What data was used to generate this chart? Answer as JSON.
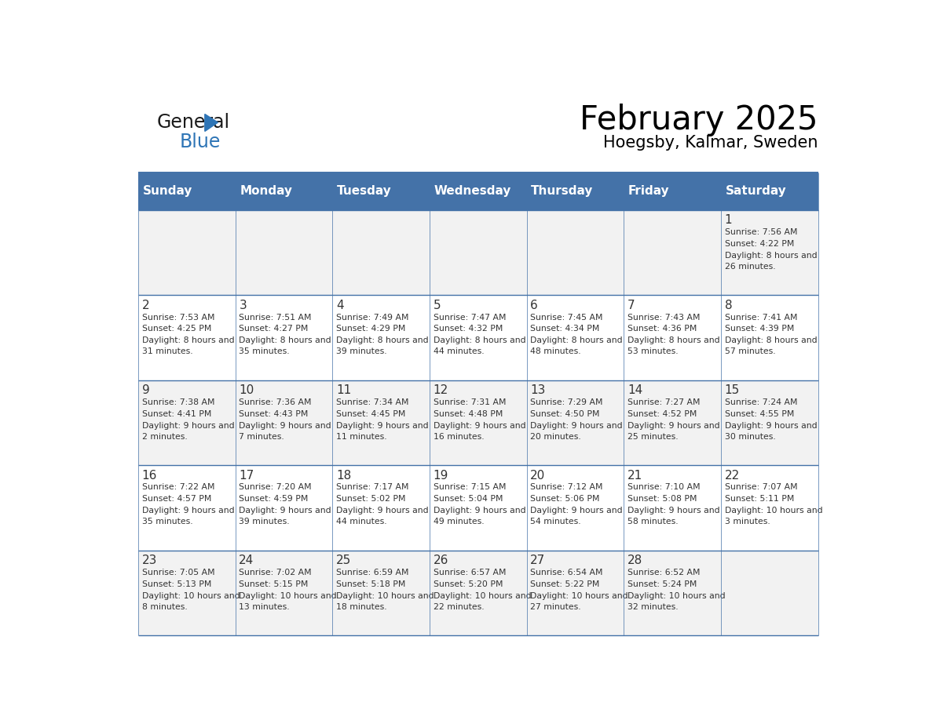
{
  "title": "February 2025",
  "subtitle": "Hoegsby, Kalmar, Sweden",
  "days_of_week": [
    "Sunday",
    "Monday",
    "Tuesday",
    "Wednesday",
    "Thursday",
    "Friday",
    "Saturday"
  ],
  "header_bg": "#4472A8",
  "header_text": "#FFFFFF",
  "row_bg_odd": "#F2F2F2",
  "row_bg_even": "#FFFFFF",
  "border_color": "#4472A8",
  "text_color": "#333333",
  "day_num_color": "#333333",
  "logo_general_color": "#1a1a1a",
  "logo_blue_color": "#2E75B6",
  "calendar_data": {
    "1": {
      "sunrise": "7:56 AM",
      "sunset": "4:22 PM",
      "daylight": "8 hours and 26 minutes.",
      "col": 6,
      "row": 0
    },
    "2": {
      "sunrise": "7:53 AM",
      "sunset": "4:25 PM",
      "daylight": "8 hours and 31 minutes.",
      "col": 0,
      "row": 1
    },
    "3": {
      "sunrise": "7:51 AM",
      "sunset": "4:27 PM",
      "daylight": "8 hours and 35 minutes.",
      "col": 1,
      "row": 1
    },
    "4": {
      "sunrise": "7:49 AM",
      "sunset": "4:29 PM",
      "daylight": "8 hours and 39 minutes.",
      "col": 2,
      "row": 1
    },
    "5": {
      "sunrise": "7:47 AM",
      "sunset": "4:32 PM",
      "daylight": "8 hours and 44 minutes.",
      "col": 3,
      "row": 1
    },
    "6": {
      "sunrise": "7:45 AM",
      "sunset": "4:34 PM",
      "daylight": "8 hours and 48 minutes.",
      "col": 4,
      "row": 1
    },
    "7": {
      "sunrise": "7:43 AM",
      "sunset": "4:36 PM",
      "daylight": "8 hours and 53 minutes.",
      "col": 5,
      "row": 1
    },
    "8": {
      "sunrise": "7:41 AM",
      "sunset": "4:39 PM",
      "daylight": "8 hours and 57 minutes.",
      "col": 6,
      "row": 1
    },
    "9": {
      "sunrise": "7:38 AM",
      "sunset": "4:41 PM",
      "daylight": "9 hours and 2 minutes.",
      "col": 0,
      "row": 2
    },
    "10": {
      "sunrise": "7:36 AM",
      "sunset": "4:43 PM",
      "daylight": "9 hours and 7 minutes.",
      "col": 1,
      "row": 2
    },
    "11": {
      "sunrise": "7:34 AM",
      "sunset": "4:45 PM",
      "daylight": "9 hours and 11 minutes.",
      "col": 2,
      "row": 2
    },
    "12": {
      "sunrise": "7:31 AM",
      "sunset": "4:48 PM",
      "daylight": "9 hours and 16 minutes.",
      "col": 3,
      "row": 2
    },
    "13": {
      "sunrise": "7:29 AM",
      "sunset": "4:50 PM",
      "daylight": "9 hours and 20 minutes.",
      "col": 4,
      "row": 2
    },
    "14": {
      "sunrise": "7:27 AM",
      "sunset": "4:52 PM",
      "daylight": "9 hours and 25 minutes.",
      "col": 5,
      "row": 2
    },
    "15": {
      "sunrise": "7:24 AM",
      "sunset": "4:55 PM",
      "daylight": "9 hours and 30 minutes.",
      "col": 6,
      "row": 2
    },
    "16": {
      "sunrise": "7:22 AM",
      "sunset": "4:57 PM",
      "daylight": "9 hours and 35 minutes.",
      "col": 0,
      "row": 3
    },
    "17": {
      "sunrise": "7:20 AM",
      "sunset": "4:59 PM",
      "daylight": "9 hours and 39 minutes.",
      "col": 1,
      "row": 3
    },
    "18": {
      "sunrise": "7:17 AM",
      "sunset": "5:02 PM",
      "daylight": "9 hours and 44 minutes.",
      "col": 2,
      "row": 3
    },
    "19": {
      "sunrise": "7:15 AM",
      "sunset": "5:04 PM",
      "daylight": "9 hours and 49 minutes.",
      "col": 3,
      "row": 3
    },
    "20": {
      "sunrise": "7:12 AM",
      "sunset": "5:06 PM",
      "daylight": "9 hours and 54 minutes.",
      "col": 4,
      "row": 3
    },
    "21": {
      "sunrise": "7:10 AM",
      "sunset": "5:08 PM",
      "daylight": "9 hours and 58 minutes.",
      "col": 5,
      "row": 3
    },
    "22": {
      "sunrise": "7:07 AM",
      "sunset": "5:11 PM",
      "daylight": "10 hours and 3 minutes.",
      "col": 6,
      "row": 3
    },
    "23": {
      "sunrise": "7:05 AM",
      "sunset": "5:13 PM",
      "daylight": "10 hours and 8 minutes.",
      "col": 0,
      "row": 4
    },
    "24": {
      "sunrise": "7:02 AM",
      "sunset": "5:15 PM",
      "daylight": "10 hours and 13 minutes.",
      "col": 1,
      "row": 4
    },
    "25": {
      "sunrise": "6:59 AM",
      "sunset": "5:18 PM",
      "daylight": "10 hours and 18 minutes.",
      "col": 2,
      "row": 4
    },
    "26": {
      "sunrise": "6:57 AM",
      "sunset": "5:20 PM",
      "daylight": "10 hours and 22 minutes.",
      "col": 3,
      "row": 4
    },
    "27": {
      "sunrise": "6:54 AM",
      "sunset": "5:22 PM",
      "daylight": "10 hours and 27 minutes.",
      "col": 4,
      "row": 4
    },
    "28": {
      "sunrise": "6:52 AM",
      "sunset": "5:24 PM",
      "daylight": "10 hours and 32 minutes.",
      "col": 5,
      "row": 4
    }
  }
}
